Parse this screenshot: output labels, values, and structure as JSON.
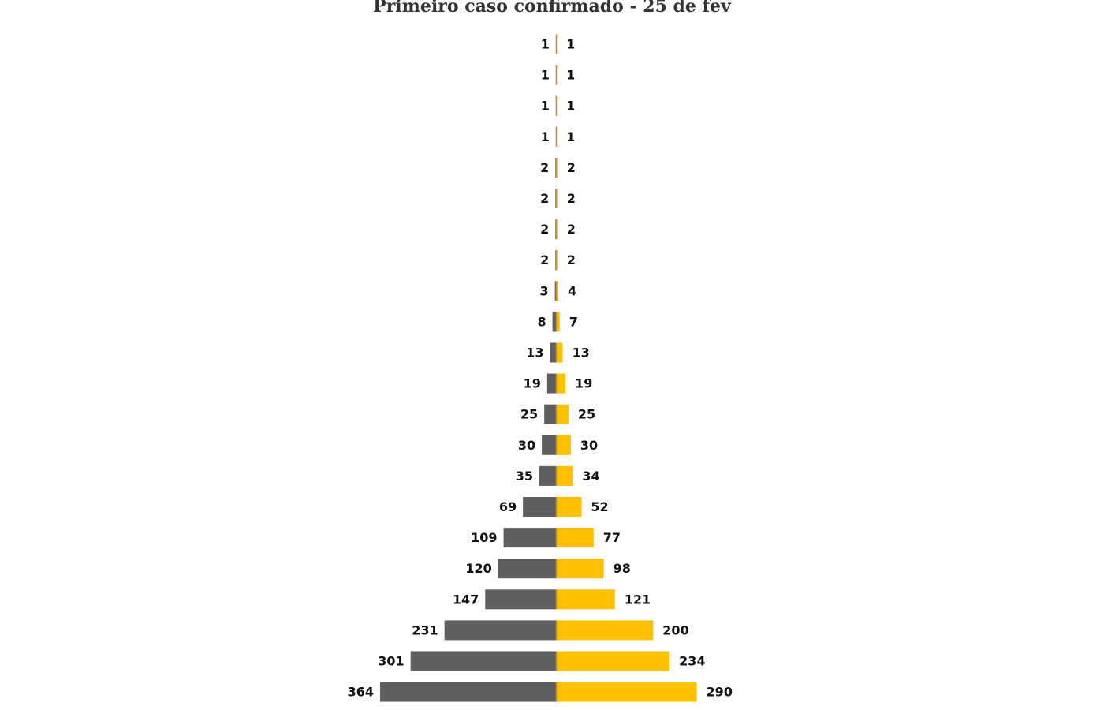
{
  "chart_data": {
    "type": "bar",
    "title": "Primeiro caso confirmado - 25 de fev",
    "orientation": "horizontal-diverging",
    "xlabel": "",
    "ylabel": "",
    "grid": false,
    "series": [
      {
        "color": "#5f5f5f",
        "side": "left",
        "values": [
          1,
          1,
          1,
          1,
          2,
          2,
          2,
          2,
          3,
          8,
          13,
          19,
          25,
          30,
          35,
          69,
          109,
          120,
          147,
          231,
          301,
          364
        ]
      },
      {
        "color": "#ffc000",
        "side": "right",
        "values": [
          1,
          1,
          1,
          1,
          2,
          2,
          2,
          2,
          4,
          7,
          13,
          19,
          25,
          30,
          34,
          52,
          77,
          98,
          121,
          200,
          234,
          290
        ]
      }
    ],
    "axis_color": "#b8923a"
  }
}
